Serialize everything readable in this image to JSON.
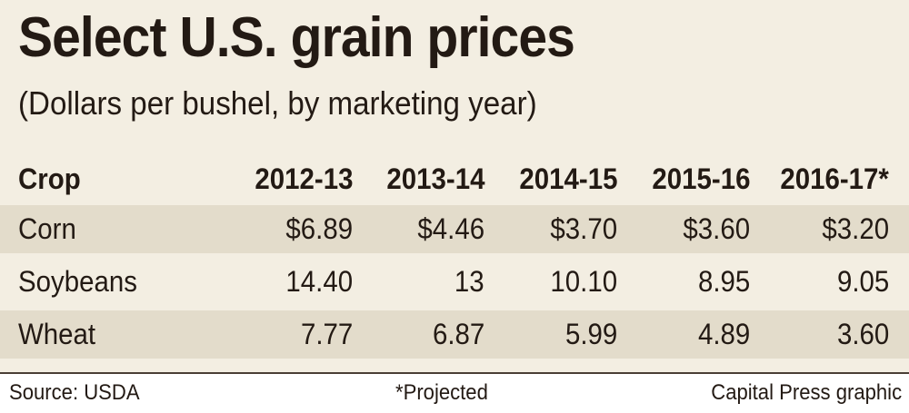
{
  "title": "Select U.S. grain prices",
  "subtitle": "(Dollars per bushel, by marketing year)",
  "table": {
    "headers": [
      "Crop",
      "2012-13",
      "2013-14",
      "2014-15",
      "2015-16",
      "2016-17*"
    ],
    "rows": [
      [
        "Corn",
        "$6.89",
        "$4.46",
        "$3.70",
        "$3.60",
        "$3.20"
      ],
      [
        "Soybeans",
        "14.40",
        "13",
        "10.10",
        "8.95",
        "9.05"
      ],
      [
        "Wheat",
        "7.77",
        "6.87",
        "5.99",
        "4.89",
        "3.60"
      ]
    ]
  },
  "footer": {
    "source": "Source: USDA",
    "note": "*Projected",
    "credit": "Capital Press graphic"
  },
  "colors": {
    "background": "#f3eee2",
    "band": "#e3dccb",
    "text": "#231a14"
  }
}
